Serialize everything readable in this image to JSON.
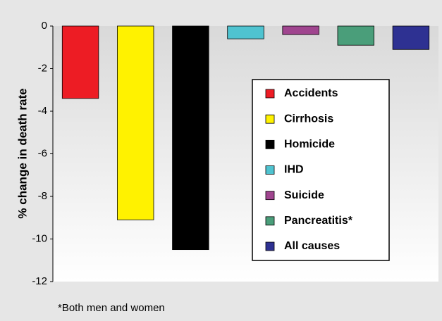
{
  "chart_data": {
    "type": "bar",
    "ylabel": "% change in death rate",
    "footnote": "*Both men and women",
    "categories": [
      null,
      null,
      null,
      null,
      null,
      null,
      null
    ],
    "series": [
      {
        "name": "Accidents",
        "color": "#ed1c24",
        "values": [
          -3.4,
          null,
          null,
          null,
          null,
          null,
          null
        ]
      },
      {
        "name": "Cirrhosis",
        "color": "#fff200",
        "values": [
          null,
          -9.1,
          null,
          null,
          null,
          null,
          null
        ]
      },
      {
        "name": "Homicide",
        "color": "#000000",
        "values": [
          null,
          null,
          -10.5,
          null,
          null,
          null,
          null
        ]
      },
      {
        "name": "IHD",
        "color": "#4fc3d0",
        "values": [
          null,
          null,
          null,
          -0.6,
          null,
          null,
          null
        ]
      },
      {
        "name": "Suicide",
        "color": "#a0458f",
        "values": [
          null,
          null,
          null,
          null,
          -0.4,
          null,
          null
        ]
      },
      {
        "name": "Pancreatitis*",
        "color": "#4a9e7a",
        "values": [
          null,
          null,
          null,
          null,
          null,
          -0.9,
          null
        ]
      },
      {
        "name": "All causes",
        "color": "#2e3192",
        "values": [
          null,
          null,
          null,
          null,
          null,
          null,
          -1.1
        ]
      }
    ],
    "ylim": [
      -12,
      0
    ],
    "yticks": [
      0,
      -2,
      -4,
      -6,
      -8,
      -10,
      -12
    ]
  }
}
